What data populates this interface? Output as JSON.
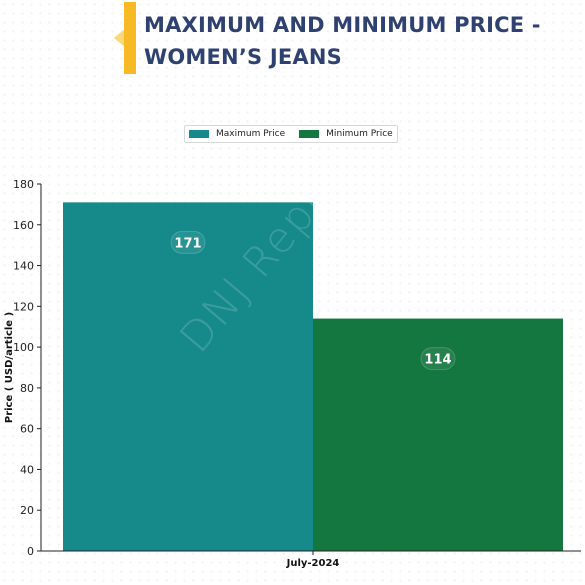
{
  "header": {
    "title_line1": "MAXIMUM AND MINIMUM PRICE -",
    "title_line2": "WOMEN’S JEANS",
    "accent_color": "#f7b924",
    "title_color": "#2f4170"
  },
  "watermark": "DNJ Reports",
  "chart_data": {
    "type": "bar",
    "title": "MAXIMUM AND MINIMUM PRICE - WOMEN’S JEANS",
    "categories": [
      "July-2024"
    ],
    "series": [
      {
        "name": "Maximum Price",
        "values": [
          171
        ],
        "color": "#168a8a"
      },
      {
        "name": "Minimum Price",
        "values": [
          114
        ],
        "color": "#14773f"
      }
    ],
    "xlabel": "",
    "ylabel": "Price ( USD/article )",
    "ylim": [
      0,
      180
    ],
    "yticks": [
      "0",
      "20",
      "40",
      "60",
      "80",
      "100",
      "120",
      "140",
      "160",
      "180"
    ],
    "data_labels": [
      "171",
      "114"
    ],
    "legend_position": "top-center",
    "grid": false
  }
}
